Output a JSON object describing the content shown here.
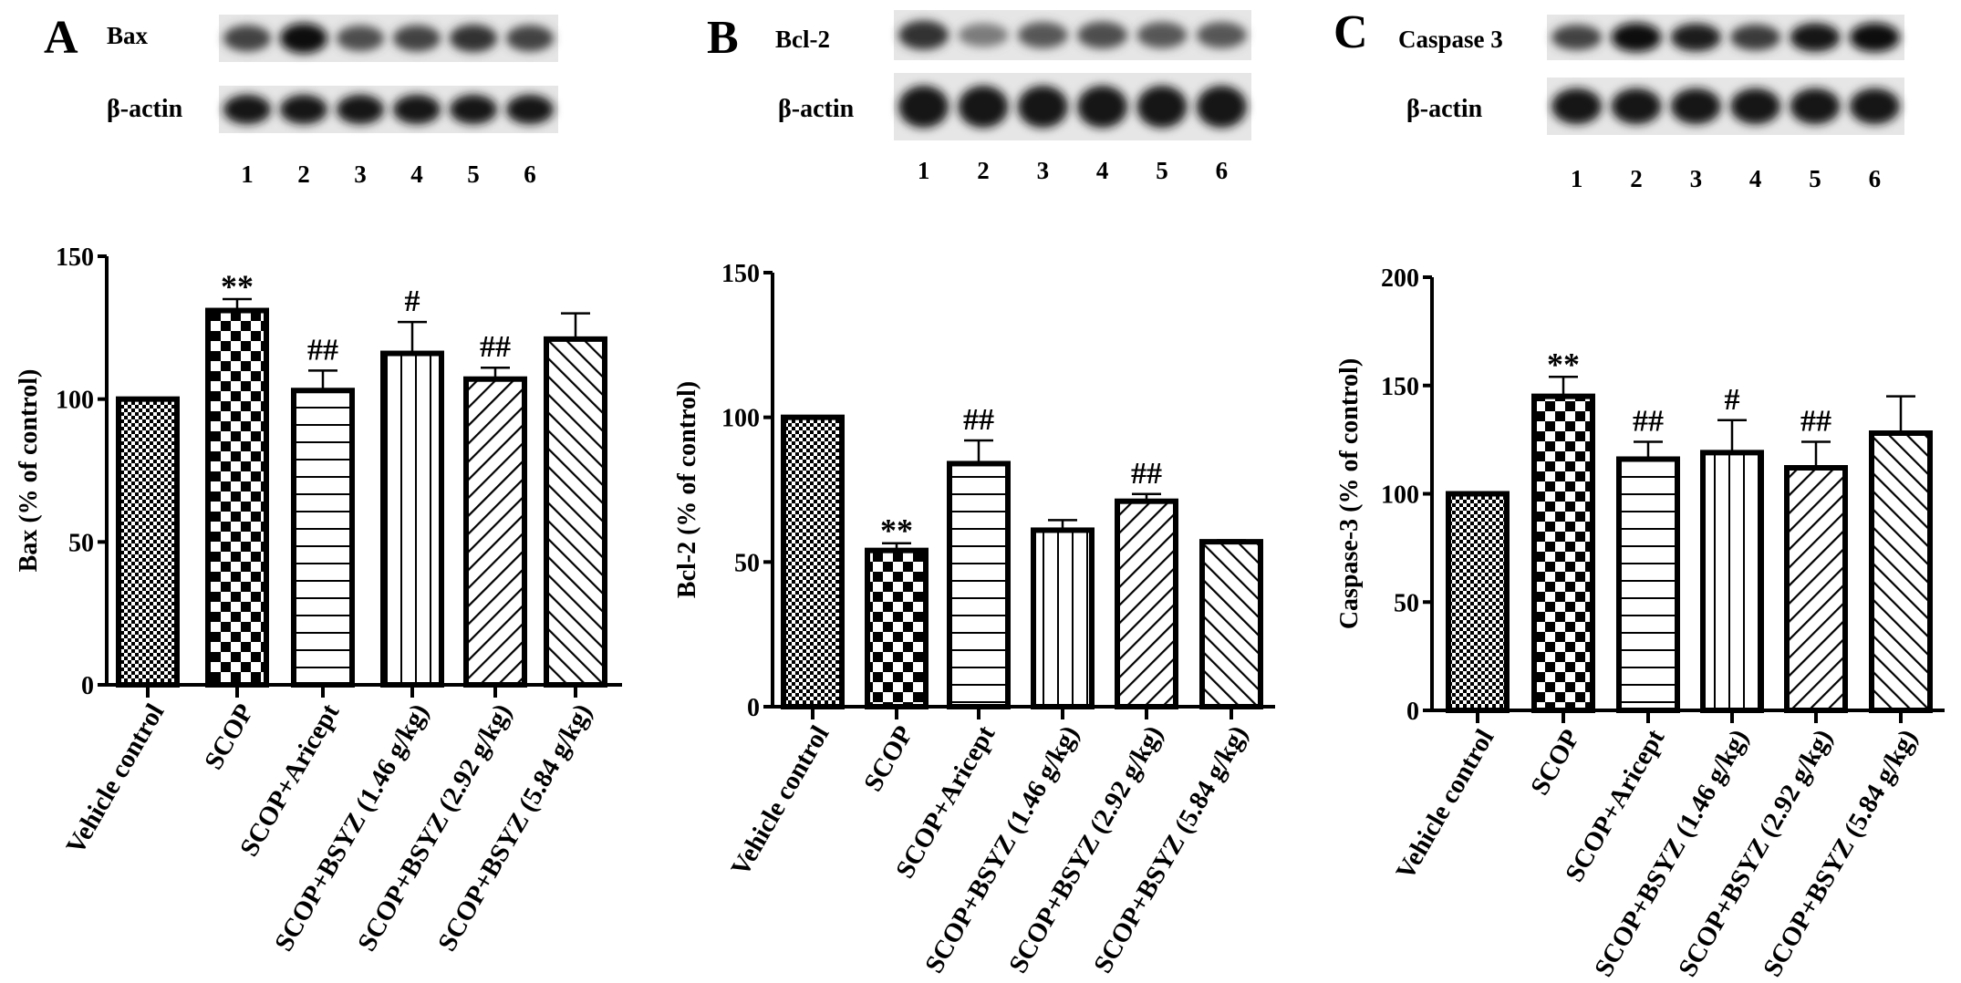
{
  "panels": [
    {
      "letter": "A",
      "blot_label": "Bax",
      "control_label": "β-actin",
      "lanes": [
        "1",
        "2",
        "3",
        "4",
        "5",
        "6"
      ],
      "band_intensity": [
        0.7,
        1.0,
        0.65,
        0.7,
        0.8,
        0.7
      ]
    },
    {
      "letter": "B",
      "blot_label": "Bcl-2",
      "control_label": "β-actin",
      "lanes": [
        "1",
        "2",
        "3",
        "4",
        "5",
        "6"
      ],
      "band_intensity": [
        0.8,
        0.4,
        0.6,
        0.65,
        0.6,
        0.6
      ]
    },
    {
      "letter": "C",
      "blot_label": "Caspase 3",
      "control_label": "β-actin",
      "lanes": [
        "1",
        "2",
        "3",
        "4",
        "5",
        "6"
      ],
      "band_intensity": [
        0.7,
        1.0,
        0.9,
        0.75,
        0.95,
        1.0
      ]
    }
  ],
  "chart_data": [
    {
      "type": "bar",
      "ylabel": "Bax (% of control)",
      "ylim": [
        0,
        150
      ],
      "yticks": [
        0,
        50,
        100,
        150
      ],
      "categories": [
        "Vehicle control",
        "SCOP",
        "SCOP+Aricept",
        "SCOP+BSYZ (1.46 g/kg)",
        "SCOP+BSYZ (2.92 g/kg)",
        "SCOP+BSYZ (5.84 g/kg)"
      ],
      "values": [
        100,
        131,
        103,
        116,
        107,
        121
      ],
      "error_upper": [
        100,
        135,
        110,
        127,
        111,
        130
      ],
      "annotations": [
        "",
        "**",
        "##",
        "#",
        "##",
        ""
      ],
      "patterns": [
        "fine-checker",
        "checker",
        "horizontal",
        "vertical",
        "diagonal-up",
        "diagonal-down"
      ]
    },
    {
      "type": "bar",
      "ylabel": "Bcl-2 (% of control)",
      "ylim": [
        0,
        150
      ],
      "yticks": [
        0,
        50,
        100,
        150
      ],
      "categories": [
        "Vehicle control",
        "SCOP",
        "SCOP+Aricept",
        "SCOP+BSYZ (1.46 g/kg)",
        "SCOP+BSYZ (2.92 g/kg)",
        "SCOP+BSYZ (5.84 g/kg)"
      ],
      "values": [
        100,
        54,
        84,
        61,
        71,
        57
      ],
      "error_upper": [
        100,
        56.5,
        92,
        64.5,
        73.5,
        57.5
      ],
      "annotations": [
        "",
        "**",
        "##",
        "",
        "##",
        ""
      ],
      "patterns": [
        "fine-checker",
        "checker",
        "horizontal",
        "vertical",
        "diagonal-up",
        "diagonal-down"
      ]
    },
    {
      "type": "bar",
      "ylabel": "Caspase-3 (% of control)",
      "ylim": [
        0,
        200
      ],
      "yticks": [
        0,
        50,
        100,
        150,
        200
      ],
      "categories": [
        "Vehicle control",
        "SCOP",
        "SCOP+Aricept",
        "SCOP+BSYZ (1.46 g/kg)",
        "SCOP+BSYZ (2.92 g/kg)",
        "SCOP+BSYZ (5.84 g/kg)"
      ],
      "values": [
        100,
        145,
        116,
        119,
        112,
        128
      ],
      "error_upper": [
        100,
        154,
        124,
        134,
        124,
        145
      ],
      "annotations": [
        "",
        "**",
        "##",
        "#",
        "##",
        ""
      ],
      "patterns": [
        "fine-checker",
        "checker",
        "horizontal",
        "vertical",
        "diagonal-up",
        "diagonal-down"
      ]
    }
  ]
}
